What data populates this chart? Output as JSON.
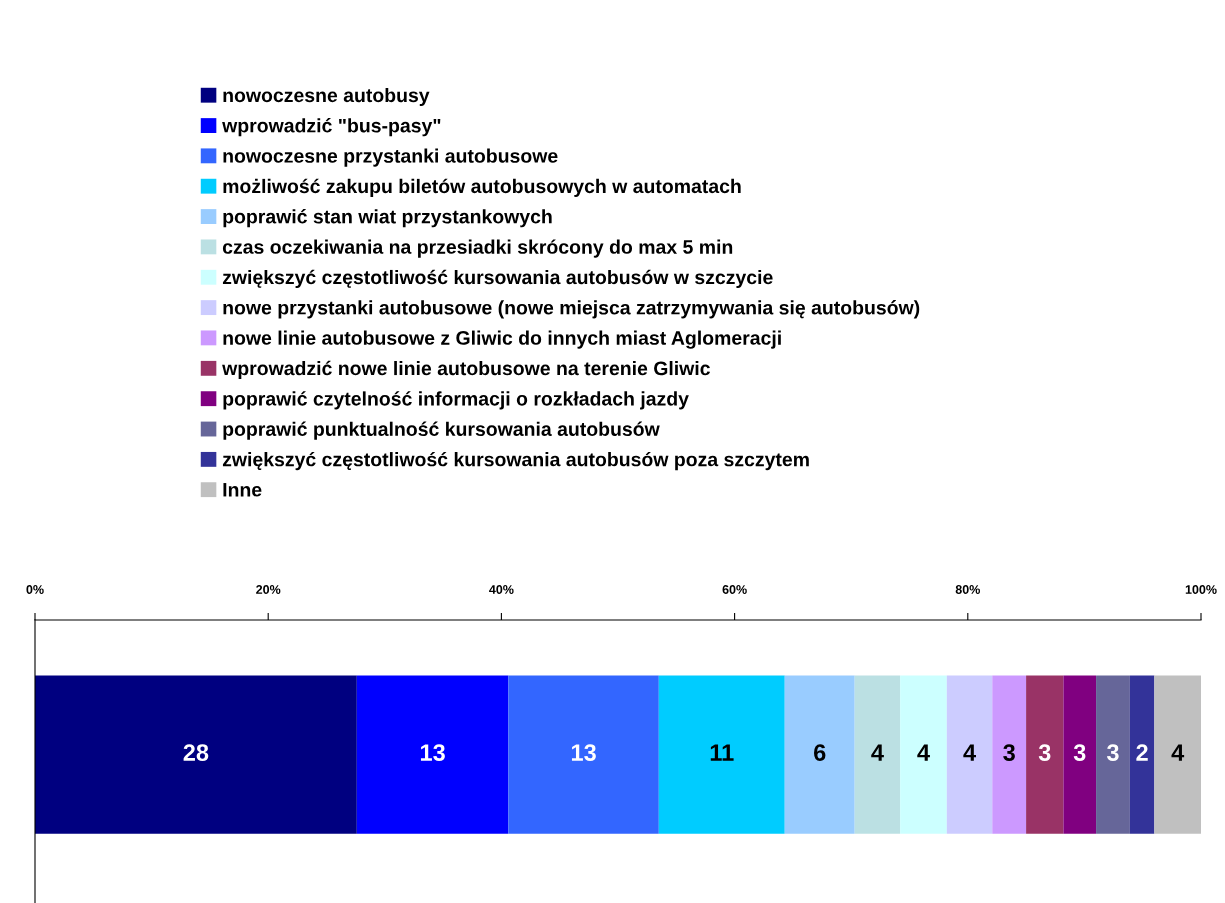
{
  "chart_data": {
    "type": "bar",
    "orientation": "horizontal",
    "stacked": true,
    "categories": [
      null
    ],
    "xlim": [
      0,
      100
    ],
    "xticks": [
      {
        "value": 0,
        "label": "0%"
      },
      {
        "value": 20,
        "label": "20%"
      },
      {
        "value": 40,
        "label": "40%"
      },
      {
        "value": 60,
        "label": "60%"
      },
      {
        "value": 80,
        "label": "80%"
      },
      {
        "value": 100,
        "label": "100%"
      }
    ],
    "legend": "top",
    "grid": false,
    "series": [
      {
        "name": "nowoczesne autobusy",
        "color": "#000080",
        "values": [
          27.6
        ],
        "value_labels": [
          "28"
        ]
      },
      {
        "name": "wprowadzić \"bus-pasy\"",
        "color": "#0000ff",
        "values": [
          13.0
        ],
        "value_labels": [
          "13"
        ]
      },
      {
        "name": "nowoczesne przystanki autobusowe",
        "color": "#3366ff",
        "values": [
          12.9
        ],
        "value_labels": [
          "13"
        ]
      },
      {
        "name": "możliwość zakupu biletów autobusowych w automatach",
        "color": "#00ccff",
        "values": [
          10.8
        ],
        "value_labels": [
          "11"
        ]
      },
      {
        "name": "poprawić stan wiat przystankowych",
        "color": "#99ccff",
        "values": [
          6.0
        ],
        "value_labels": [
          "6"
        ]
      },
      {
        "name": "czas oczekiwania na przesiadki skrócony do max 5 min",
        "color": "#bbe0e3",
        "values": [
          3.9
        ],
        "value_labels": [
          "4"
        ]
      },
      {
        "name": "zwiększyć częstotliwość kursowania autobusów w szczycie",
        "color": "#ccffff",
        "values": [
          4.0
        ],
        "value_labels": [
          "4"
        ]
      },
      {
        "name": "nowe przystanki autobusowe (nowe miejsca zatrzymywania się autobusów)",
        "color": "#ccccff",
        "values": [
          3.9
        ],
        "value_labels": [
          "4"
        ]
      },
      {
        "name": "nowe linie autobusowe z Gliwic do innych miast Aglomeracji",
        "color": "#cc99ff",
        "values": [
          2.9
        ],
        "value_labels": [
          "3"
        ]
      },
      {
        "name": "wprowadzić nowe linie autobusowe na terenie Gliwic",
        "color": "#993366",
        "values": [
          3.2
        ],
        "value_labels": [
          "3"
        ]
      },
      {
        "name": "poprawić czytelność informacji o rozkładach jazdy",
        "color": "#800080",
        "values": [
          2.8
        ],
        "value_labels": [
          "3"
        ]
      },
      {
        "name": "poprawić punktualność kursowania autobusów",
        "color": "#666699",
        "values": [
          2.9
        ],
        "value_labels": [
          "3"
        ]
      },
      {
        "name": "zwiększyć częstotliwość kursowania autobusów poza szczytem",
        "color": "#333399",
        "values": [
          2.1
        ],
        "value_labels": [
          "2"
        ]
      },
      {
        "name": "Inne",
        "color": "#c0c0c0",
        "values": [
          4.0
        ],
        "value_labels": [
          "4"
        ]
      }
    ]
  }
}
